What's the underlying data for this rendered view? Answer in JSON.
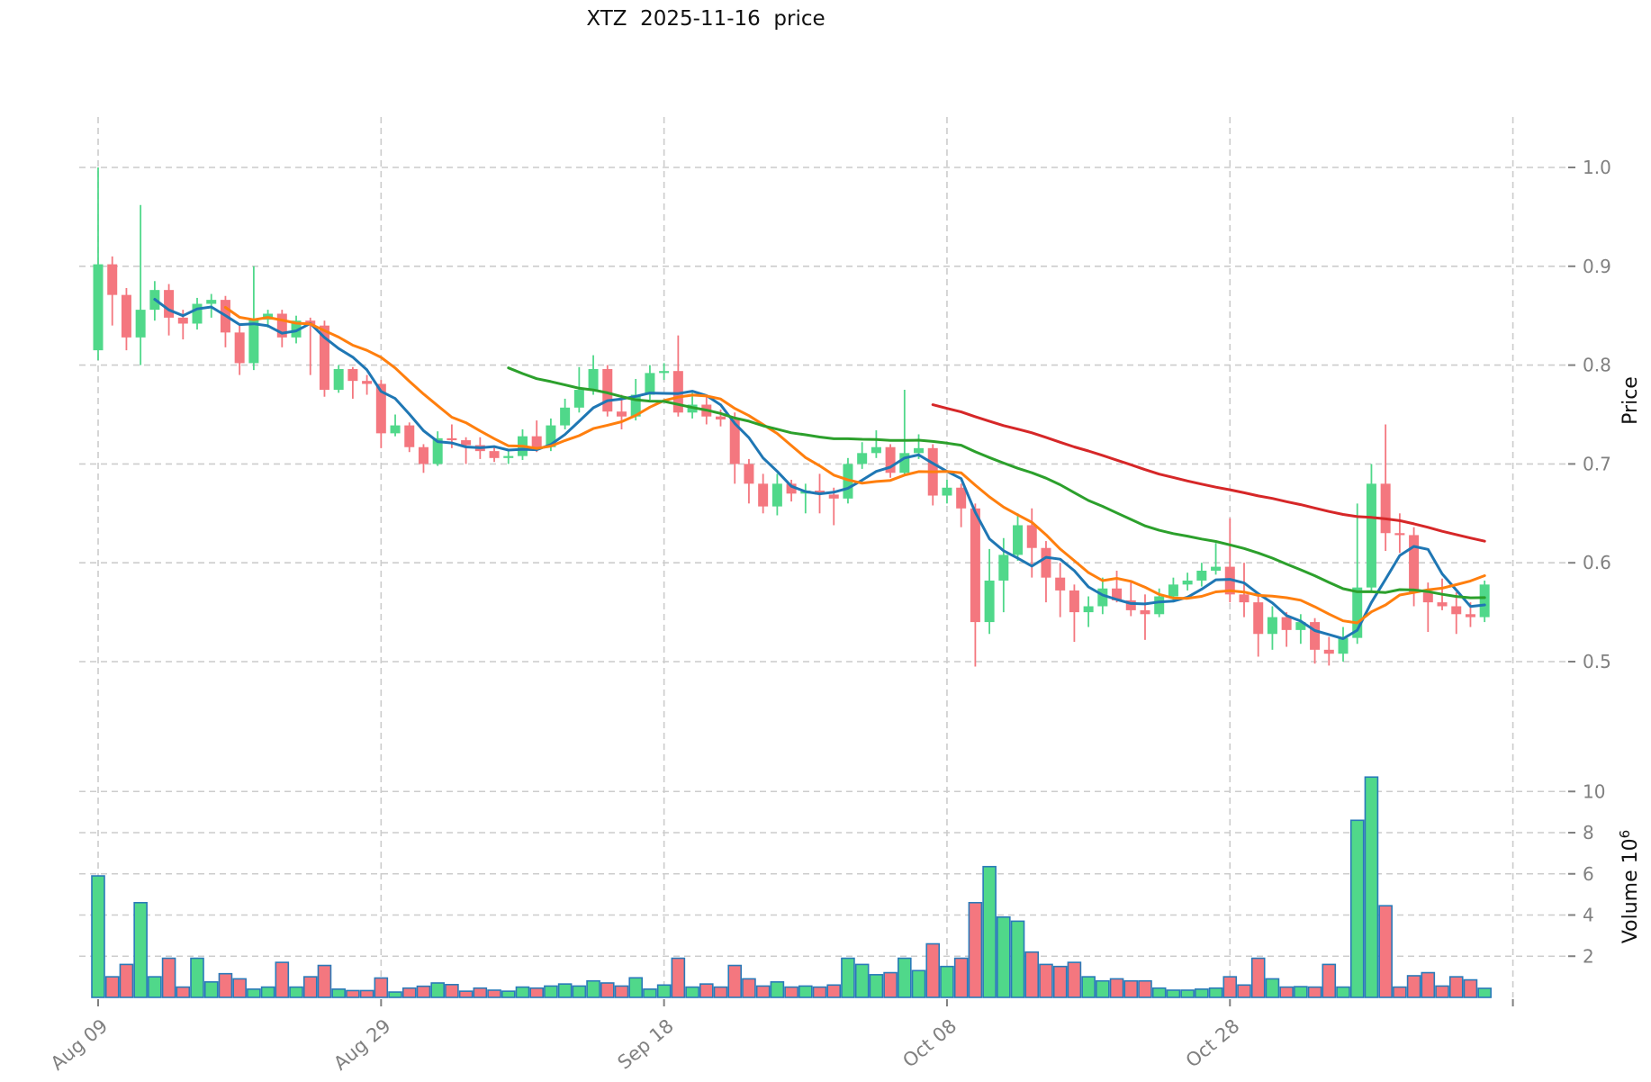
{
  "title": "XTZ  2025-11-16  price",
  "axes": {
    "price": {
      "label": "Price",
      "side": "right",
      "ticks": [
        "1.0",
        "0.9",
        "0.8",
        "0.7",
        "0.6",
        "0.5"
      ],
      "tick_values": [
        1.0,
        0.9,
        0.8,
        0.7,
        0.6,
        0.5
      ]
    },
    "volume": {
      "label": "Volume",
      "unit_base": "10",
      "unit_exponent": "6",
      "side": "right",
      "ticks": [
        "2",
        "4",
        "6",
        "8",
        "10"
      ],
      "tick_values": [
        2,
        4,
        6,
        8,
        10
      ]
    },
    "x": {
      "tick_labels": [
        "Aug 09",
        "Aug 29",
        "Sep 18",
        "Oct 08",
        "Oct 28"
      ],
      "tick_indices": [
        0,
        20,
        40,
        60,
        80
      ],
      "extra_gridline_index": 100
    }
  },
  "colors": {
    "up": "#50d88a",
    "down": "#f4777f",
    "volume_edge": "#2a7ab9",
    "sma5": "#1f77b4",
    "sma10": "#ff7f0e",
    "sma30": "#2ca02c",
    "sma60": "#d62728",
    "grid": "#cccccc",
    "tick_text": "#808080",
    "title_text": "#111111"
  },
  "chart_data": {
    "type": "candlestick+volume",
    "symbol": "XTZ",
    "title": "XTZ  2025-11-16  price",
    "grid": "dashed",
    "price_axis_range": [
      0.46,
      1.05
    ],
    "volume_axis_range_millions": [
      0,
      12
    ],
    "legend": "none",
    "moving_averages": [
      {
        "name": "SMA5",
        "window": 5,
        "color_key": "sma5"
      },
      {
        "name": "SMA10",
        "window": 10,
        "color_key": "sma10"
      },
      {
        "name": "SMA30",
        "window": 30,
        "color_key": "sma30"
      },
      {
        "name": "SMA60",
        "window": 60,
        "color_key": "sma60"
      }
    ],
    "dates": [
      "Aug 09",
      "Aug 10",
      "Aug 11",
      "Aug 12",
      "Aug 13",
      "Aug 14",
      "Aug 15",
      "Aug 16",
      "Aug 17",
      "Aug 18",
      "Aug 19",
      "Aug 20",
      "Aug 21",
      "Aug 22",
      "Aug 23",
      "Aug 24",
      "Aug 25",
      "Aug 26",
      "Aug 27",
      "Aug 28",
      "Aug 29",
      "Aug 30",
      "Aug 31",
      "Sep 01",
      "Sep 02",
      "Sep 03",
      "Sep 04",
      "Sep 05",
      "Sep 06",
      "Sep 07",
      "Sep 08",
      "Sep 09",
      "Sep 10",
      "Sep 11",
      "Sep 12",
      "Sep 13",
      "Sep 14",
      "Sep 15",
      "Sep 16",
      "Sep 17",
      "Sep 18",
      "Sep 19",
      "Sep 20",
      "Sep 21",
      "Sep 22",
      "Sep 23",
      "Sep 24",
      "Sep 25",
      "Sep 26",
      "Sep 27",
      "Sep 28",
      "Sep 29",
      "Sep 30",
      "Oct 01",
      "Oct 02",
      "Oct 03",
      "Oct 04",
      "Oct 05",
      "Oct 06",
      "Oct 07",
      "Oct 08",
      "Oct 09",
      "Oct 10",
      "Oct 11",
      "Oct 12",
      "Oct 13",
      "Oct 14",
      "Oct 15",
      "Oct 16",
      "Oct 17",
      "Oct 18",
      "Oct 19",
      "Oct 20",
      "Oct 21",
      "Oct 22",
      "Oct 23",
      "Oct 24",
      "Oct 25",
      "Oct 26",
      "Oct 27",
      "Oct 28",
      "Oct 29",
      "Oct 30",
      "Oct 31",
      "Nov 01",
      "Nov 02",
      "Nov 03",
      "Nov 04",
      "Nov 05",
      "Nov 06",
      "Nov 07",
      "Nov 08",
      "Nov 09",
      "Nov 10",
      "Nov 11",
      "Nov 12",
      "Nov 13",
      "Nov 14",
      "Nov 15"
    ],
    "open": [
      0.815,
      0.902,
      0.871,
      0.828,
      0.856,
      0.876,
      0.848,
      0.842,
      0.862,
      0.866,
      0.833,
      0.802,
      0.846,
      0.852,
      0.828,
      0.845,
      0.84,
      0.775,
      0.796,
      0.784,
      0.781,
      0.731,
      0.739,
      0.717,
      0.7,
      0.726,
      0.724,
      0.719,
      0.713,
      0.706,
      0.708,
      0.728,
      0.717,
      0.739,
      0.757,
      0.775,
      0.796,
      0.753,
      0.748,
      0.77,
      0.792,
      0.794,
      0.752,
      0.76,
      0.748,
      0.745,
      0.7,
      0.68,
      0.657,
      0.68,
      0.67,
      0.673,
      0.669,
      0.665,
      0.7,
      0.711,
      0.717,
      0.691,
      0.711,
      0.716,
      0.668,
      0.676,
      0.655,
      0.54,
      0.582,
      0.608,
      0.638,
      0.615,
      0.585,
      0.572,
      0.55,
      0.556,
      0.574,
      0.562,
      0.552,
      0.548,
      0.566,
      0.578,
      0.582,
      0.592,
      0.596,
      0.568,
      0.56,
      0.528,
      0.545,
      0.532,
      0.54,
      0.512,
      0.508,
      0.524,
      0.575,
      0.68,
      0.63,
      0.628,
      0.57,
      0.56,
      0.556,
      0.548,
      0.545
    ],
    "high": [
      1.0,
      0.91,
      0.878,
      0.962,
      0.885,
      0.882,
      0.856,
      0.868,
      0.872,
      0.87,
      0.84,
      0.9,
      0.856,
      0.856,
      0.85,
      0.848,
      0.845,
      0.8,
      0.798,
      0.79,
      0.785,
      0.75,
      0.742,
      0.72,
      0.733,
      0.74,
      0.727,
      0.727,
      0.718,
      0.714,
      0.735,
      0.744,
      0.746,
      0.766,
      0.798,
      0.81,
      0.8,
      0.77,
      0.786,
      0.8,
      0.802,
      0.83,
      0.772,
      0.768,
      0.755,
      0.752,
      0.705,
      0.69,
      0.69,
      0.684,
      0.68,
      0.69,
      0.676,
      0.706,
      0.722,
      0.734,
      0.72,
      0.775,
      0.73,
      0.72,
      0.684,
      0.68,
      0.66,
      0.614,
      0.625,
      0.65,
      0.655,
      0.622,
      0.6,
      0.578,
      0.566,
      0.585,
      0.592,
      0.58,
      0.568,
      0.574,
      0.585,
      0.59,
      0.6,
      0.62,
      0.645,
      0.6,
      0.566,
      0.556,
      0.55,
      0.548,
      0.544,
      0.525,
      0.535,
      0.66,
      0.7,
      0.74,
      0.65,
      0.636,
      0.58,
      0.584,
      0.57,
      0.56,
      0.582
    ],
    "low": [
      0.805,
      0.84,
      0.815,
      0.8,
      0.845,
      0.83,
      0.826,
      0.836,
      0.848,
      0.818,
      0.79,
      0.795,
      0.838,
      0.818,
      0.822,
      0.79,
      0.768,
      0.772,
      0.766,
      0.77,
      0.716,
      0.728,
      0.712,
      0.691,
      0.698,
      0.716,
      0.7,
      0.705,
      0.702,
      0.7,
      0.704,
      0.712,
      0.713,
      0.735,
      0.752,
      0.77,
      0.748,
      0.735,
      0.744,
      0.765,
      0.785,
      0.748,
      0.746,
      0.74,
      0.738,
      0.68,
      0.66,
      0.65,
      0.648,
      0.662,
      0.65,
      0.65,
      0.638,
      0.66,
      0.695,
      0.706,
      0.686,
      0.688,
      0.705,
      0.658,
      0.66,
      0.636,
      0.495,
      0.528,
      0.55,
      0.602,
      0.585,
      0.56,
      0.545,
      0.52,
      0.535,
      0.548,
      0.56,
      0.546,
      0.522,
      0.545,
      0.56,
      0.572,
      0.576,
      0.588,
      0.56,
      0.545,
      0.505,
      0.512,
      0.515,
      0.518,
      0.498,
      0.496,
      0.5,
      0.518,
      0.57,
      0.612,
      0.61,
      0.556,
      0.53,
      0.552,
      0.528,
      0.535,
      0.54
    ],
    "close": [
      0.902,
      0.871,
      0.828,
      0.856,
      0.876,
      0.848,
      0.842,
      0.862,
      0.866,
      0.833,
      0.802,
      0.846,
      0.852,
      0.828,
      0.845,
      0.84,
      0.775,
      0.796,
      0.784,
      0.781,
      0.731,
      0.739,
      0.717,
      0.7,
      0.726,
      0.724,
      0.719,
      0.713,
      0.706,
      0.708,
      0.728,
      0.717,
      0.739,
      0.757,
      0.775,
      0.796,
      0.753,
      0.748,
      0.77,
      0.792,
      0.794,
      0.752,
      0.76,
      0.748,
      0.745,
      0.7,
      0.68,
      0.657,
      0.68,
      0.67,
      0.673,
      0.669,
      0.665,
      0.7,
      0.711,
      0.717,
      0.691,
      0.711,
      0.716,
      0.668,
      0.676,
      0.655,
      0.54,
      0.582,
      0.608,
      0.638,
      0.615,
      0.585,
      0.572,
      0.55,
      0.556,
      0.574,
      0.562,
      0.552,
      0.548,
      0.566,
      0.578,
      0.582,
      0.592,
      0.596,
      0.568,
      0.56,
      0.528,
      0.545,
      0.532,
      0.54,
      0.512,
      0.508,
      0.524,
      0.575,
      0.68,
      0.63,
      0.628,
      0.57,
      0.56,
      0.556,
      0.548,
      0.545,
      0.578
    ],
    "volume_millions": [
      5.9,
      1.0,
      1.6,
      4.6,
      1.0,
      1.9,
      0.5,
      1.9,
      0.75,
      1.15,
      0.9,
      0.4,
      0.5,
      1.7,
      0.5,
      1.0,
      1.55,
      0.4,
      0.33,
      0.33,
      0.94,
      0.26,
      0.45,
      0.54,
      0.7,
      0.62,
      0.3,
      0.45,
      0.35,
      0.3,
      0.5,
      0.45,
      0.55,
      0.65,
      0.55,
      0.8,
      0.7,
      0.55,
      0.95,
      0.4,
      0.6,
      1.9,
      0.5,
      0.65,
      0.5,
      1.55,
      0.9,
      0.55,
      0.75,
      0.5,
      0.55,
      0.5,
      0.6,
      1.9,
      1.6,
      1.1,
      1.2,
      1.9,
      1.3,
      2.6,
      1.5,
      1.9,
      4.6,
      6.35,
      3.9,
      3.7,
      2.2,
      1.6,
      1.5,
      1.7,
      1.0,
      0.8,
      0.9,
      0.8,
      0.8,
      0.45,
      0.35,
      0.35,
      0.4,
      0.45,
      1.0,
      0.6,
      1.9,
      0.9,
      0.5,
      0.52,
      0.5,
      1.6,
      0.5,
      8.6,
      10.7,
      4.45,
      0.5,
      1.05,
      1.2,
      0.55,
      1.0,
      0.85,
      0.44
    ]
  }
}
